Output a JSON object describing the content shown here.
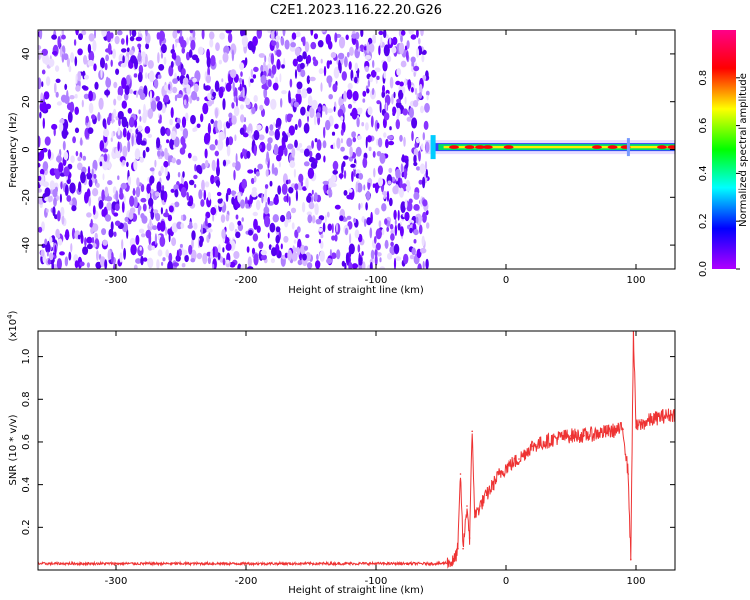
{
  "title": "C2E1.2023.116.22.20.G26",
  "spectrogram": {
    "ylabel": "Frequency (Hz)",
    "xlabel": "Height of straight line (km)",
    "xlim": [
      -360,
      130
    ],
    "ylim": [
      -50,
      50
    ],
    "xticks": [
      -300,
      -200,
      -100,
      0,
      100
    ],
    "xtick_labels": [
      "-300",
      "-200",
      "-100",
      "0",
      "100"
    ],
    "yticks": [
      -40,
      -20,
      0,
      20,
      40
    ],
    "ytick_labels": [
      "-40",
      "-20",
      "0",
      "20",
      "40"
    ],
    "noise_region_x": [
      -360,
      -60
    ],
    "signal_line_frequency": 1,
    "colormap": [
      "#b000ff",
      "#0000ff",
      "#00ffff",
      "#00ff00",
      "#ffff00",
      "#ff0000",
      "#ff0088"
    ]
  },
  "colorbar": {
    "label": "Normalized spectral amplitude",
    "ticks": [
      0.0,
      0.2,
      0.4,
      0.6,
      0.8
    ],
    "tick_labels": [
      "0.0",
      "0.2",
      "0.4",
      "0.6",
      "0.8"
    ],
    "range": [
      0,
      1
    ]
  },
  "chart_data": {
    "type": "line",
    "ylabel": "SNR (10 * v/v)",
    "multiplier": "(x10",
    "multiplier_exp": "4",
    "multiplier_close": ")",
    "xlabel": "Height of straight line (km)",
    "xlim": [
      -360,
      130
    ],
    "ylim": [
      0,
      1.12
    ],
    "xticks": [
      -300,
      -200,
      -100,
      0,
      100
    ],
    "xtick_labels": [
      "-300",
      "-200",
      "-100",
      "0",
      "100"
    ],
    "yticks": [
      0.2,
      0.4,
      0.6,
      0.8,
      1.0
    ],
    "ytick_labels": [
      "0.2",
      "0.4",
      "0.6",
      "0.8",
      "1.0"
    ],
    "series": [
      {
        "color": "#ee3333",
        "x": [
          -360,
          -300,
          -200,
          -100,
          -50,
          -40,
          -37,
          -35,
          -33,
          -30,
          -28,
          -26,
          -24,
          -20,
          -15,
          -10,
          -5,
          0,
          10,
          20,
          30,
          40,
          50,
          60,
          70,
          80,
          90,
          94,
          96,
          98,
          100,
          110,
          120,
          130
        ],
        "y": [
          0.03,
          0.03,
          0.03,
          0.03,
          0.03,
          0.04,
          0.1,
          0.45,
          0.1,
          0.3,
          0.15,
          0.65,
          0.25,
          0.3,
          0.35,
          0.4,
          0.45,
          0.48,
          0.52,
          0.58,
          0.6,
          0.62,
          0.63,
          0.63,
          0.64,
          0.65,
          0.66,
          0.45,
          0.05,
          1.12,
          0.67,
          0.7,
          0.72,
          0.73
        ]
      }
    ]
  }
}
